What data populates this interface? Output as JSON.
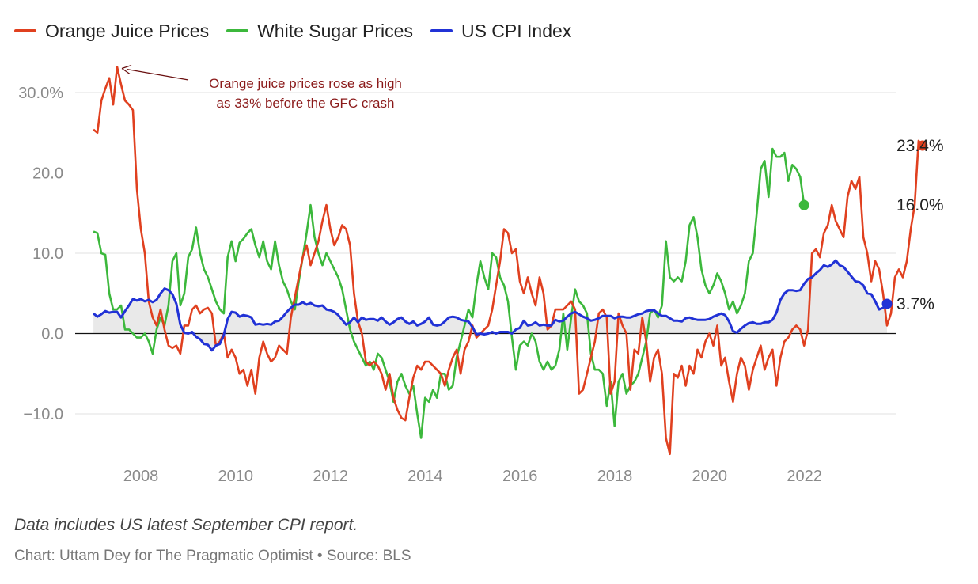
{
  "chart_data": {
    "type": "line",
    "x_start": 2007.0,
    "x_step_years": 0.0833,
    "ylim": [
      -12.5,
      33.5
    ],
    "xlim": [
      2006.9,
      2023.9
    ],
    "y_ticks": [
      {
        "value": 30,
        "label": "30.0%"
      },
      {
        "value": 20,
        "label": "20.0"
      },
      {
        "value": 10,
        "label": "10.0"
      },
      {
        "value": 0,
        "label": "0.0"
      },
      {
        "value": -10,
        "label": "−10.0"
      }
    ],
    "x_ticks": [
      {
        "value": 2008,
        "label": "2008"
      },
      {
        "value": 2010,
        "label": "2010"
      },
      {
        "value": 2012,
        "label": "2012"
      },
      {
        "value": 2014,
        "label": "2014"
      },
      {
        "value": 2016,
        "label": "2016"
      },
      {
        "value": 2018,
        "label": "2018"
      },
      {
        "value": 2020,
        "label": "2020"
      },
      {
        "value": 2022,
        "label": "2022"
      }
    ],
    "series": [
      {
        "name": "Orange Juice Prices",
        "color": "#e0401f",
        "end_label": "23.4%",
        "values": [
          25.4,
          25.0,
          29.0,
          30.5,
          31.8,
          28.5,
          33.2,
          31.0,
          29.0,
          28.5,
          27.8,
          18.0,
          13.0,
          10.0,
          4.0,
          2.0,
          1.0,
          3.0,
          0.5,
          -1.5,
          -1.8,
          -1.5,
          -2.5,
          1.0,
          1.0,
          3.0,
          3.5,
          2.5,
          3.0,
          3.2,
          2.5,
          -1.5,
          -1.0,
          0.0,
          -3.0,
          -2.0,
          -3.0,
          -5.0,
          -4.5,
          -6.5,
          -4.5,
          -7.5,
          -3.0,
          -1.0,
          -2.5,
          -3.5,
          -3.0,
          -1.5,
          -2.0,
          -2.5,
          2.0,
          4.5,
          7.0,
          9.5,
          11.0,
          8.5,
          10.0,
          11.5,
          14.0,
          16.0,
          13.0,
          11.0,
          12.0,
          13.5,
          13.0,
          11.0,
          5.0,
          1.5,
          0.0,
          -3.5,
          -4.0,
          -3.5,
          -4.0,
          -5.0,
          -7.0,
          -5.0,
          -8.0,
          -9.5,
          -10.5,
          -10.8,
          -8.0,
          -5.5,
          -4.0,
          -4.5,
          -3.5,
          -3.5,
          -4.0,
          -4.5,
          -5.0,
          -6.5,
          -4.5,
          -3.0,
          -2.0,
          -5.0,
          -2.0,
          -1.0,
          1.0,
          -0.5,
          0.0,
          0.5,
          1.0,
          3.0,
          6.0,
          9.0,
          13.0,
          12.5,
          10.0,
          10.5,
          6.5,
          5.0,
          7.0,
          5.0,
          3.5,
          7.0,
          5.0,
          0.5,
          1.0,
          3.0,
          3.0,
          3.0,
          3.5,
          4.0,
          3.0,
          -7.5,
          -7.0,
          -5.0,
          -3.0,
          -1.0,
          2.5,
          3.0,
          2.0,
          -7.5,
          -6.0,
          2.5,
          1.0,
          0.0,
          -7.0,
          -2.0,
          -2.5,
          2.0,
          -1.0,
          -6.0,
          -3.0,
          -2.0,
          -5.0,
          -13.0,
          -15.0,
          -5.0,
          -5.5,
          -4.0,
          -6.5,
          -4.0,
          -5.0,
          -2.0,
          -3.0,
          -1.0,
          0.0,
          -1.5,
          1.0,
          -4.0,
          -3.0,
          -6.0,
          -8.5,
          -5.0,
          -3.0,
          -4.0,
          -7.0,
          -4.5,
          -3.0,
          -1.5,
          -4.5,
          -3.0,
          -2.0,
          -6.5,
          -3.0,
          -1.0,
          -0.5,
          0.5,
          1.0,
          0.5,
          -1.5,
          0.5,
          10.0,
          10.5,
          9.5,
          12.5,
          13.5,
          16.0,
          14.0,
          13.0,
          12.0,
          17.0,
          19.0,
          18.0,
          19.5,
          12.0,
          10.0,
          6.5,
          9.0,
          8.0,
          5.0,
          1.0,
          2.5,
          7.0,
          8.0,
          7.0,
          9.0,
          13.0,
          16.0,
          24.0,
          23.4
        ]
      },
      {
        "name": "White Sugar Prices",
        "color": "#3cb83c",
        "end_label": "16.0%",
        "values": [
          12.7,
          12.5,
          10.0,
          9.8,
          5.0,
          3.0,
          3.0,
          3.5,
          0.5,
          0.5,
          0.0,
          -0.5,
          -0.5,
          0.0,
          -1.0,
          -2.5,
          0.5,
          2.0,
          1.0,
          3.5,
          9.0,
          10.0,
          3.5,
          5.0,
          9.5,
          10.5,
          13.2,
          10.0,
          8.0,
          7.0,
          5.5,
          4.0,
          3.0,
          2.5,
          9.5,
          11.5,
          9.0,
          11.3,
          11.8,
          12.5,
          13.0,
          11.0,
          9.5,
          11.5,
          9.0,
          8.0,
          11.5,
          8.5,
          6.5,
          5.5,
          4.0,
          3.0,
          6.5,
          9.5,
          12.5,
          16.0,
          12.0,
          10.0,
          8.5,
          10.0,
          9.0,
          8.0,
          7.0,
          5.5,
          3.0,
          0.5,
          -1.0,
          -2.0,
          -3.0,
          -4.0,
          -3.5,
          -4.5,
          -2.5,
          -3.0,
          -4.5,
          -6.0,
          -8.5,
          -6.0,
          -5.0,
          -6.5,
          -7.5,
          -6.5,
          -10.0,
          -13.0,
          -8.0,
          -8.5,
          -7.0,
          -8.0,
          -5.0,
          -5.0,
          -7.0,
          -6.5,
          -3.0,
          -1.0,
          1.0,
          3.0,
          2.0,
          6.0,
          9.0,
          7.0,
          5.5,
          10.0,
          9.5,
          7.0,
          6.0,
          4.0,
          -0.5,
          -4.5,
          -1.5,
          -1.0,
          -1.5,
          0.0,
          -1.0,
          -3.5,
          -4.5,
          -3.5,
          -4.5,
          -4.0,
          -2.0,
          2.5,
          -2.0,
          2.0,
          5.5,
          4.0,
          3.5,
          2.5,
          -2.5,
          -4.5,
          -4.5,
          -5.0,
          -9.0,
          -6.0,
          -11.5,
          -6.0,
          -5.0,
          -7.5,
          -6.5,
          -6.0,
          -5.0,
          -3.0,
          -1.0,
          2.5,
          3.0,
          2.0,
          3.5,
          11.5,
          7.0,
          6.5,
          7.0,
          6.5,
          9.0,
          13.5,
          14.5,
          12.0,
          8.0,
          6.0,
          5.0,
          6.0,
          7.5,
          6.5,
          5.0,
          3.0,
          4.0,
          2.5,
          3.5,
          5.0,
          9.0,
          10.0,
          15.0,
          20.5,
          21.5,
          17.0,
          23.0,
          22.0,
          22.0,
          22.5,
          19.0,
          21.0,
          20.5,
          19.5,
          16.0
        ]
      },
      {
        "name": "US CPI Index",
        "color": "#2132d6",
        "end_label": "3.7%",
        "values": [
          2.5,
          2.1,
          2.4,
          2.8,
          2.6,
          2.7,
          2.7,
          2.0,
          2.8,
          3.5,
          4.3,
          4.1,
          4.3,
          4.0,
          4.2,
          3.9,
          4.2,
          5.0,
          5.6,
          5.4,
          4.9,
          3.7,
          1.1,
          0.1,
          0.0,
          0.2,
          -0.4,
          -0.7,
          -1.3,
          -1.4,
          -2.1,
          -1.5,
          -1.3,
          -0.2,
          1.8,
          2.7,
          2.6,
          2.1,
          2.3,
          2.2,
          2.0,
          1.1,
          1.2,
          1.1,
          1.2,
          1.1,
          1.5,
          1.6,
          2.1,
          2.7,
          3.2,
          3.6,
          3.6,
          3.9,
          3.6,
          3.8,
          3.5,
          3.4,
          3.5,
          3.0,
          2.9,
          2.7,
          2.3,
          1.7,
          1.1,
          1.4,
          2.0,
          1.4,
          2.0,
          1.7,
          1.8,
          1.8,
          1.6,
          2.0,
          1.5,
          1.1,
          1.4,
          1.8,
          2.0,
          1.5,
          1.2,
          1.5,
          1.0,
          1.2,
          1.5,
          2.0,
          1.1,
          1.0,
          1.1,
          1.5,
          2.0,
          2.1,
          2.0,
          1.7,
          1.6,
          1.5,
          0.8,
          -0.1,
          0.0,
          -0.1,
          0.0,
          0.2,
          0.0,
          0.2,
          0.2,
          0.2,
          0.0,
          0.5,
          0.7,
          1.6,
          1.0,
          1.1,
          1.4,
          1.0,
          1.1,
          1.0,
          1.0,
          1.7,
          1.5,
          1.6,
          2.1,
          2.5,
          2.7,
          2.4,
          2.1,
          1.9,
          1.6,
          1.7,
          1.9,
          2.2,
          2.2,
          2.2,
          1.9,
          2.1,
          2.1,
          2.0,
          2.0,
          2.2,
          2.4,
          2.5,
          2.8,
          2.9,
          2.9,
          2.5,
          2.2,
          2.2,
          1.9,
          1.6,
          1.6,
          1.5,
          1.9,
          2.0,
          1.8,
          1.7,
          1.7,
          1.7,
          1.8,
          2.1,
          2.3,
          2.5,
          2.3,
          1.5,
          0.3,
          0.1,
          0.6,
          1.0,
          1.3,
          1.4,
          1.2,
          1.2,
          1.4,
          1.4,
          1.7,
          2.6,
          4.2,
          5.0,
          5.4,
          5.4,
          5.3,
          5.4,
          6.2,
          6.8,
          7.0,
          7.5,
          7.9,
          8.5,
          8.3,
          8.6,
          9.1,
          8.5,
          8.3,
          7.7,
          7.1,
          6.5,
          6.4,
          6.0,
          5.0,
          4.9,
          4.0,
          3.0,
          3.2,
          3.7
        ]
      }
    ],
    "annotation": {
      "line1": "Orange juice prices rose as high",
      "line2": "as 33% before the GFC crash",
      "target_x": 2007.5,
      "target_y": 33.2
    },
    "grid": true,
    "legend_position": "top-left"
  },
  "footer": {
    "note": "Data includes US latest September CPI report.",
    "credit": "Chart: Uttam Dey for The Pragmatic Optimist • Source: BLS"
  }
}
